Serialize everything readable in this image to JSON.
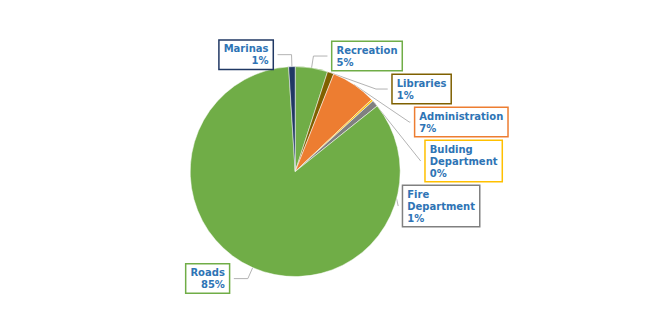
{
  "chart_data": {
    "type": "pie",
    "categories": [
      "Recreation",
      "Libraries",
      "Administration",
      "Bulding\nDepartment",
      "Fire\nDepartment",
      "Roads",
      "Marinas"
    ],
    "values": [
      5,
      1,
      7,
      0.3,
      1,
      85,
      1
    ],
    "value_labels": [
      "5%",
      "1%",
      "7%",
      "0%",
      "1%",
      "85%",
      "1%"
    ],
    "colors": [
      "#70AD47",
      "#7F6000",
      "#ED7D31",
      "#FFC000",
      "#808080",
      "#70AD47",
      "#203864"
    ],
    "data_labels": true,
    "legend": false
  }
}
